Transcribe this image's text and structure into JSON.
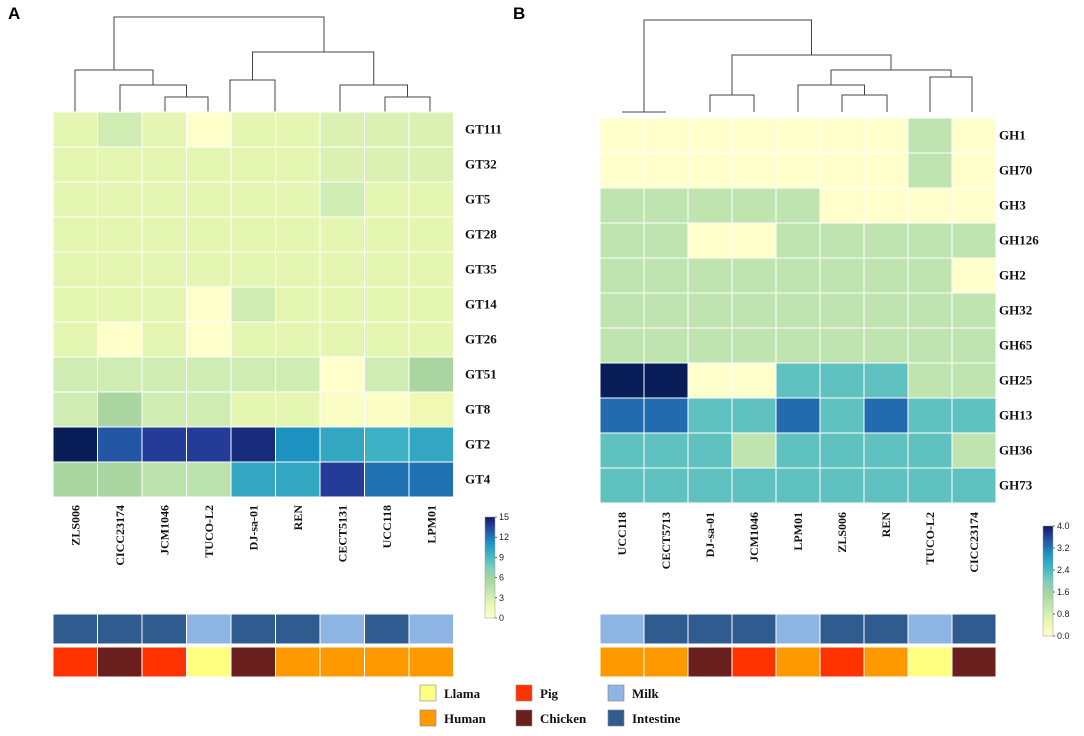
{
  "chart_data": [
    {
      "type": "heatmap",
      "panel": "A",
      "columns": [
        "ZLS006",
        "CICC23174",
        "JCM1046",
        "TUCO-L2",
        "DJ-sa-01",
        "REN",
        "CECT5131",
        "UCC118",
        "LPM01"
      ],
      "rows": [
        "GT111",
        "GT32",
        "GT5",
        "GT28",
        "GT35",
        "GT14",
        "GT26",
        "GT51",
        "GT8",
        "GT2",
        "GT4"
      ],
      "values": [
        [
          2,
          3,
          2,
          0,
          2,
          2,
          2.5,
          2.5,
          2.5
        ],
        [
          2,
          2,
          2,
          2,
          2,
          2,
          2.5,
          2.5,
          2.5
        ],
        [
          2,
          2,
          2,
          2,
          2,
          2,
          3,
          2,
          2
        ],
        [
          2,
          2,
          2,
          2,
          2,
          2,
          2,
          2,
          2
        ],
        [
          2,
          2,
          2,
          2,
          2,
          2,
          2,
          2,
          2
        ],
        [
          2,
          2,
          2,
          0,
          3,
          2,
          2,
          2,
          2
        ],
        [
          2,
          0,
          2,
          0,
          2,
          2,
          2,
          2,
          2
        ],
        [
          3,
          3,
          3,
          3,
          3,
          3,
          0,
          3,
          5
        ],
        [
          3,
          5,
          3,
          3,
          2,
          2,
          0.5,
          0.3,
          1.5
        ],
        [
          16,
          12,
          13,
          13,
          14,
          10,
          9,
          8.5,
          9
        ],
        [
          5,
          5,
          4,
          4,
          9,
          9,
          13,
          11,
          11
        ]
      ],
      "color_range": [
        0,
        15
      ],
      "colorbar_ticks": [
        "15",
        "12",
        "9",
        "6",
        "3",
        "0"
      ],
      "dendrogram_order": [
        "ZLS006",
        "CICC23174",
        "JCM1046",
        "TUCO-L2",
        "DJ-sa-01",
        "REN",
        "CECT5131",
        "UCC118",
        "LPM01"
      ],
      "annotation_rows": {
        "source": [
          "Intestine",
          "Intestine",
          "Intestine",
          "Milk",
          "Intestine",
          "Intestine",
          "Milk",
          "Intestine",
          "Milk"
        ],
        "host": [
          "Pig",
          "Chicken",
          "Pig",
          "Llama",
          "Chicken",
          "Human",
          "Human",
          "Human",
          "Human"
        ]
      }
    },
    {
      "type": "heatmap",
      "panel": "B",
      "columns": [
        "UCC118",
        "CECT5713",
        "DJ-sa-01",
        "JCM1046",
        "LPM01",
        "ZLS006",
        "REN",
        "TUCO-L2",
        "CICC23174"
      ],
      "rows": [
        "GH1",
        "GH70",
        "GH3",
        "GH126",
        "GH2",
        "GH32",
        "GH65",
        "GH25",
        "GH13",
        "GH36",
        "GH73"
      ],
      "values": [
        [
          0,
          0,
          0,
          0,
          0,
          0,
          0,
          1,
          0
        ],
        [
          0,
          0,
          0,
          0,
          0,
          0,
          0,
          1,
          0
        ],
        [
          1,
          1,
          1,
          1,
          1,
          0,
          0,
          0,
          0
        ],
        [
          1,
          1,
          0,
          0,
          1,
          1,
          1,
          1,
          1
        ],
        [
          1,
          1,
          1,
          1,
          1,
          1,
          1,
          1,
          0
        ],
        [
          1,
          1,
          1,
          1,
          1,
          1,
          1,
          1,
          1
        ],
        [
          1,
          1,
          1,
          1,
          1,
          1,
          1,
          1,
          1
        ],
        [
          4,
          4,
          0,
          0,
          2,
          2,
          2,
          1,
          1
        ],
        [
          3,
          3,
          2,
          2,
          3,
          2,
          3,
          2,
          2
        ],
        [
          2,
          2,
          2,
          1,
          2,
          2,
          2,
          2,
          1
        ],
        [
          2,
          2,
          2,
          2,
          2,
          2,
          2,
          2,
          2
        ]
      ],
      "color_range": [
        0,
        4
      ],
      "colorbar_ticks": [
        "4.0",
        "3.2",
        "2.4",
        "1.6",
        "0.8",
        "0.0"
      ],
      "dendrogram_order": [
        "UCC118",
        "CECT5713",
        "DJ-sa-01",
        "JCM1046",
        "LPM01",
        "ZLS006",
        "REN",
        "TUCO-L2",
        "CICC23174"
      ],
      "annotation_rows": {
        "source": [
          "Milk",
          "Intestine",
          "Intestine",
          "Intestine",
          "Milk",
          "Intestine",
          "Intestine",
          "Milk",
          "Intestine"
        ],
        "host": [
          "Human",
          "Human",
          "Chicken",
          "Pig",
          "Human",
          "Pig",
          "Human",
          "Llama",
          "Chicken"
        ]
      }
    }
  ],
  "legend": {
    "items": [
      {
        "label": "Llama",
        "color": "#FFFF80"
      },
      {
        "label": "Human",
        "color": "#FF9900"
      },
      {
        "label": "Pig",
        "color": "#FF3300"
      },
      {
        "label": "Chicken",
        "color": "#6B1E1E"
      },
      {
        "label": "Milk",
        "color": "#8EB4E3"
      },
      {
        "label": "Intestine",
        "color": "#2F5B8F"
      }
    ]
  },
  "colormap": [
    "#FFFFCC",
    "#EDF8B1",
    "#C7E9B4",
    "#A8D5A0",
    "#7FCDBB",
    "#41B6C4",
    "#1D91C0",
    "#225EA8",
    "#253494",
    "#081D58"
  ]
}
